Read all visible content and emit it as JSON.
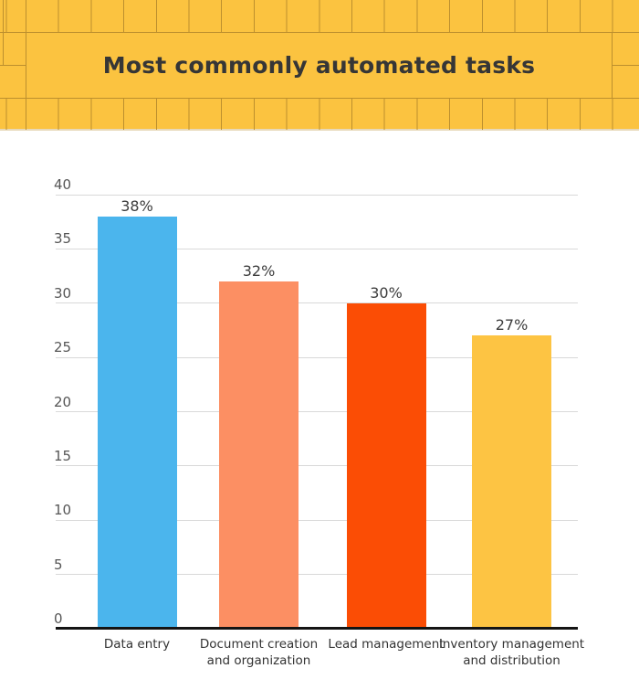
{
  "header": {
    "title": "Most commonly automated tasks",
    "background_color": "#FBC340",
    "grid_line_color": "#BC8F2E",
    "title_color": "#363636"
  },
  "chart_data": {
    "type": "bar",
    "title": "Most commonly automated tasks",
    "categories": [
      "Data entry",
      "Document creation\nand organization",
      "Lead management",
      "Inventory management\nand distribution"
    ],
    "values": [
      38,
      32,
      30,
      27
    ],
    "value_labels": [
      "38%",
      "32%",
      "30%",
      "27%"
    ],
    "bar_colors": [
      "#4BB5ED",
      "#FC8F63",
      "#FB4D05",
      "#FDC443"
    ],
    "yticks": [
      0,
      5,
      10,
      15,
      20,
      25,
      30,
      35,
      40
    ],
    "ylim": [
      0,
      40
    ],
    "xlabel": "",
    "ylabel": "",
    "grid": true,
    "legend": false,
    "gridline_color": "#d9d9d9",
    "axis_color": "#141414",
    "tick_label_color": "#565656",
    "value_label_color": "#3c3c3c",
    "category_label_color": "#333333"
  }
}
